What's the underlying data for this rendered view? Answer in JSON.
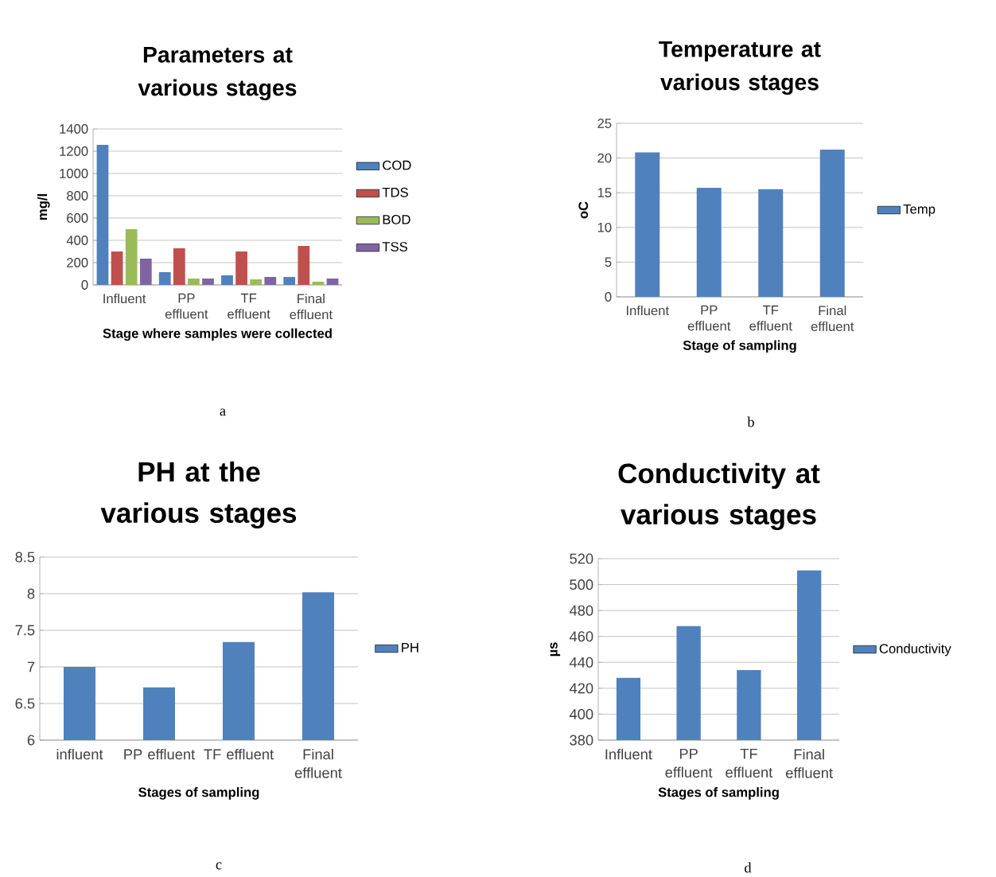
{
  "chart_data": [
    {
      "type": "bar",
      "title": "Parameters at various stages",
      "xlabel": "Stage where samples were collected",
      "ylabel": "mg/l",
      "categories": [
        "Influent",
        "PP effluent",
        "TF effluent",
        "Final effluent"
      ],
      "series": [
        {
          "name": "COD",
          "color": "#4f81bd",
          "values": [
            1257,
            114,
            86,
            71
          ]
        },
        {
          "name": "TDS",
          "color": "#c0504d",
          "values": [
            300,
            329,
            300,
            350
          ]
        },
        {
          "name": "BOD",
          "color": "#9bbb59",
          "values": [
            500,
            57,
            50,
            29
          ]
        },
        {
          "name": "TSS",
          "color": "#8064a2",
          "values": [
            236,
            57,
            71,
            57
          ]
        }
      ],
      "ylim": [
        0,
        1400
      ],
      "yticks": [
        0,
        200,
        400,
        600,
        800,
        1000,
        1200,
        1400
      ],
      "grid": "y",
      "legend": "right",
      "annotations": [
        "a"
      ]
    },
    {
      "type": "bar",
      "title": "Temperature at various stages",
      "xlabel": "Stage of sampling",
      "ylabel": "oC",
      "categories": [
        "Influent",
        "PP effluent",
        "TF effluent",
        "Final effluent"
      ],
      "series": [
        {
          "name": "Temp",
          "color": "#4f81bd",
          "values": [
            20.8,
            15.7,
            15.5,
            21.2
          ]
        }
      ],
      "ylim": [
        0,
        25
      ],
      "yticks": [
        0,
        5,
        10,
        15,
        20,
        25
      ],
      "grid": "y",
      "legend": "right",
      "annotations": [
        "b"
      ]
    },
    {
      "type": "bar",
      "title": "PH  at the various stages",
      "xlabel": "Stages of sampling",
      "categories": [
        "influent",
        "PP effluent",
        "TF effluent",
        "Final effluent"
      ],
      "series": [
        {
          "name": "PH",
          "color": "#4f81bd",
          "values": [
            7.0,
            6.72,
            7.34,
            8.02
          ]
        }
      ],
      "ylim": [
        6,
        8.5
      ],
      "yticks": [
        6,
        6.5,
        7,
        7.5,
        8,
        8.5
      ],
      "grid": "y",
      "legend": "right",
      "annotations": [
        "c"
      ]
    },
    {
      "type": "bar",
      "title": "Conductivity at various stages",
      "xlabel": "Stages of sampling",
      "ylabel": "µs",
      "categories": [
        "Influent",
        "PP effluent",
        "TF effluent",
        "Final effluent"
      ],
      "series": [
        {
          "name": "Conductivity",
          "color": "#4f81bd",
          "values": [
            428,
            468,
            434,
            511
          ]
        }
      ],
      "ylim": [
        380,
        520
      ],
      "yticks": [
        380,
        400,
        420,
        440,
        460,
        480,
        500,
        520
      ],
      "grid": "y",
      "legend": "right",
      "annotations": [
        "d"
      ]
    }
  ]
}
